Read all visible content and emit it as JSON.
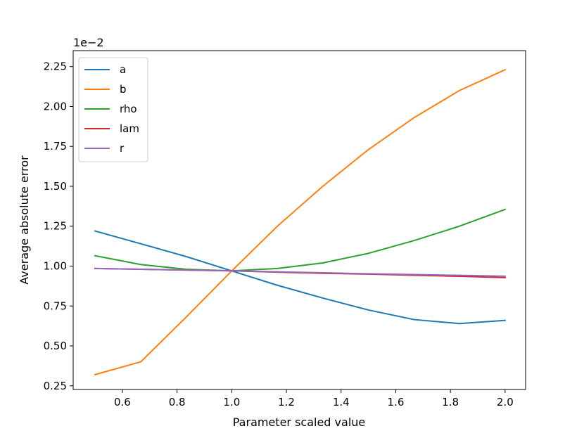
{
  "chart_data": {
    "type": "line",
    "xlabel": "Parameter scaled value",
    "ylabel": "Average absolute error",
    "y_offset_text": "1e−2",
    "xlim": [
      0.42,
      2.075
    ],
    "ylim": [
      0.227,
      2.35
    ],
    "x_ticks": [
      "0.6",
      "0.8",
      "1.0",
      "1.2",
      "1.4",
      "1.6",
      "1.8",
      "2.0"
    ],
    "y_ticks": [
      "0.25",
      "0.50",
      "0.75",
      "1.00",
      "1.25",
      "1.50",
      "1.75",
      "2.00",
      "2.25"
    ],
    "legend_position": "top-left",
    "grid": false,
    "x": [
      0.5,
      0.667,
      0.833,
      1.0,
      1.167,
      1.333,
      1.5,
      1.667,
      1.833,
      2.0
    ],
    "series": [
      {
        "name": "a",
        "color": "#1f77b4",
        "values": [
          1.22,
          1.14,
          1.06,
          0.97,
          0.88,
          0.8,
          0.725,
          0.665,
          0.64,
          0.66
        ]
      },
      {
        "name": "b",
        "color": "#ff7f0e",
        "values": [
          0.32,
          0.4,
          0.68,
          0.97,
          1.25,
          1.5,
          1.73,
          1.93,
          2.1,
          2.23
        ]
      },
      {
        "name": "rho",
        "color": "#2ca02c",
        "values": [
          1.065,
          1.01,
          0.98,
          0.97,
          0.985,
          1.02,
          1.08,
          1.16,
          1.25,
          1.355
        ]
      },
      {
        "name": "lam",
        "color": "#d62728",
        "values": [
          0.985,
          0.98,
          0.975,
          0.97,
          0.962,
          0.955,
          0.95,
          0.943,
          0.936,
          0.928
        ]
      },
      {
        "name": "r",
        "color": "#9467bd",
        "values": [
          0.985,
          0.98,
          0.975,
          0.97,
          0.964,
          0.958,
          0.952,
          0.947,
          0.942,
          0.937
        ]
      }
    ]
  }
}
